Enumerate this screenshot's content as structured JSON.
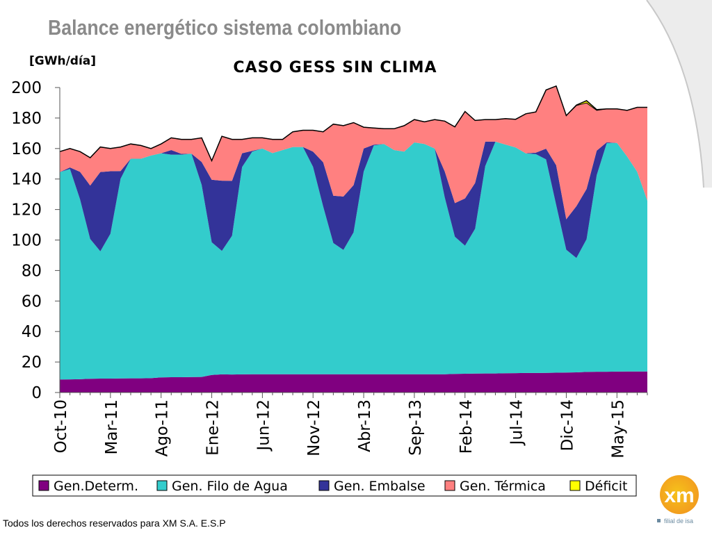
{
  "slide": {
    "title": "Balance energético sistema colombiano",
    "footer": "Todos los derechos reservados para XM S.A. E.S.P",
    "logo": {
      "mark_text": "xm",
      "tagline": "filial de isa",
      "colors": {
        "orange": "#f29a1f",
        "yellow": "#f6c21a",
        "tagline": "#6a8aa0"
      }
    }
  },
  "chart_data": {
    "type": "area",
    "title": "CASO GESS SIN CLIMA",
    "ylabel": "[GWh/día]",
    "xlabel": "",
    "ylim": [
      0,
      200
    ],
    "yticks": [
      0,
      20,
      40,
      60,
      80,
      100,
      120,
      140,
      160,
      180,
      200
    ],
    "xtick_labels": [
      "Oct-10",
      "Mar-11",
      "Ago-11",
      "Ene-12",
      "Jun-12",
      "Nov-12",
      "Abr-13",
      "Sep-13",
      "Feb-14",
      "Jul-14",
      "Dic-14",
      "May-15"
    ],
    "x_months": [
      "Oct-10",
      "Nov-10",
      "Dic-10",
      "Ene-11",
      "Feb-11",
      "Mar-11",
      "Abr-11",
      "May-11",
      "Jun-11",
      "Jul-11",
      "Ago-11",
      "Sep-11",
      "Oct-11",
      "Nov-11",
      "Dic-11",
      "Ene-12",
      "Feb-12",
      "Mar-12",
      "Abr-12",
      "May-12",
      "Jun-12",
      "Jul-12",
      "Ago-12",
      "Sep-12",
      "Oct-12",
      "Nov-12",
      "Dic-12",
      "Ene-13",
      "Feb-13",
      "Mar-13",
      "Abr-13",
      "May-13",
      "Jun-13",
      "Jul-13",
      "Ago-13",
      "Sep-13",
      "Oct-13",
      "Nov-13",
      "Dic-13",
      "Ene-14",
      "Feb-14",
      "Mar-14",
      "Abr-14",
      "May-14",
      "Jun-14",
      "Jul-14",
      "Ago-14",
      "Sep-14",
      "Oct-14",
      "Nov-14",
      "Dic-14",
      "Ene-15",
      "Feb-15",
      "Mar-15",
      "Abr-15",
      "May-15",
      "Jun-15",
      "Jul-15",
      "Ago-15"
    ],
    "stacking": "cumulative",
    "series": [
      {
        "name": "Gen.Determ.",
        "color": "#800080",
        "values": [
          8.5,
          8.6,
          8.7,
          9.0,
          9.1,
          9.1,
          9.2,
          9.3,
          9.3,
          9.4,
          9.9,
          10.0,
          10.0,
          10.1,
          10.2,
          11.5,
          11.9,
          11.8,
          11.9,
          12.0,
          12.0,
          12.0,
          12.0,
          12.0,
          12.0,
          12.0,
          12.0,
          12.0,
          12.0,
          12.0,
          12.0,
          12.0,
          12.0,
          12.0,
          12.0,
          12.0,
          12.0,
          12.0,
          12.0,
          12.2,
          12.3,
          12.4,
          12.5,
          12.5,
          12.6,
          12.7,
          12.8,
          12.8,
          12.9,
          13.0,
          13.1,
          13.2,
          13.5,
          13.6,
          13.6,
          13.7,
          13.8,
          13.8,
          13.8
        ]
      },
      {
        "name": "Gen. Filo de Agua",
        "color": "#33cccc",
        "values": [
          136.0,
          138.0,
          118.0,
          91.7,
          83.5,
          95.0,
          131.0,
          144.0,
          144.0,
          146.0,
          147.0,
          146.0,
          146.0,
          146.5,
          126.0,
          87.0,
          81.0,
          91.0,
          136.0,
          146.0,
          148.0,
          145.0,
          147.0,
          149.0,
          149.0,
          136.0,
          110.0,
          86.0,
          81.5,
          93.0,
          133.0,
          150.0,
          151.0,
          147.0,
          146.0,
          152.0,
          151.0,
          148.0,
          116.0,
          90.0,
          84.0,
          95.0,
          136.0,
          152.0,
          150.0,
          148.0,
          144.0,
          143.5,
          140.0,
          110.0,
          80.5,
          75.0,
          87.0,
          129.0,
          150.0,
          150.0,
          141.0,
          131.0,
          112.0
        ]
      },
      {
        "name": "Gen. Embalse",
        "color": "#333399",
        "values": [
          0.0,
          1.0,
          18.0,
          35.0,
          52.0,
          41.0,
          5.0,
          0.0,
          0.0,
          0.0,
          0.0,
          3.0,
          0.5,
          0.0,
          15.0,
          41.0,
          46.0,
          36.0,
          9.0,
          0.5,
          0.0,
          0.0,
          0.0,
          0.0,
          0.0,
          10.0,
          29.0,
          31.0,
          35.0,
          31.0,
          15.0,
          0.5,
          0.0,
          0.0,
          0.0,
          0.0,
          0.0,
          0.0,
          17.0,
          22.0,
          31.0,
          30.0,
          16.0,
          0.0,
          0.0,
          0.0,
          0.0,
          1.0,
          7.0,
          26.0,
          20.0,
          34.0,
          33.0,
          16.0,
          0.5,
          0.0,
          0.0,
          0.0,
          0.0
        ]
      },
      {
        "name": "Gen. Térmica",
        "color": "#ff8080",
        "values": [
          13.5,
          12.4,
          13.3,
          18.3,
          16.4,
          14.9,
          15.8,
          9.7,
          8.7,
          4.6,
          6.1,
          8.0,
          9.5,
          9.4,
          15.8,
          12.5,
          29.1,
          27.2,
          9.1,
          8.5,
          7.0,
          9.0,
          7.0,
          10.0,
          11.0,
          14.0,
          20.0,
          47.0,
          46.5,
          41.0,
          14.0,
          11.0,
          10.0,
          14.0,
          17.0,
          15.0,
          14.5,
          19.0,
          33.0,
          50.0,
          57.0,
          41.0,
          14.5,
          14.5,
          17.0,
          18.5,
          26.0,
          26.7,
          38.5,
          52.0,
          68.0,
          66.0,
          56.4,
          26.4,
          21.9,
          22.3,
          30.2,
          42.2,
          61.2
        ]
      },
      {
        "name": "Déficit",
        "color": "#ffff00",
        "values": [
          0,
          0,
          0,
          0,
          0,
          0,
          0,
          0,
          0,
          0,
          0,
          0,
          0,
          0,
          0,
          0,
          0,
          0,
          0,
          0,
          0,
          0,
          0,
          0,
          0,
          0,
          0,
          0,
          0,
          0,
          0,
          0,
          0,
          0,
          0,
          0,
          0,
          0,
          0,
          0,
          0,
          0,
          0,
          0,
          0,
          0,
          0,
          0,
          0,
          0,
          0,
          0.3,
          1.5,
          0.5,
          0,
          0,
          0,
          0,
          0
        ]
      }
    ],
    "legend_position": "bottom",
    "grid": false
  }
}
